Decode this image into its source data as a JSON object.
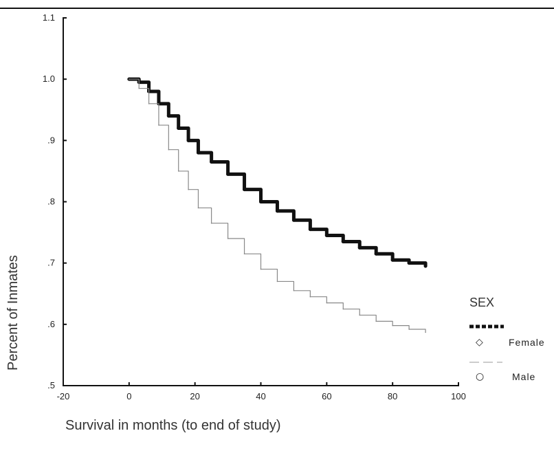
{
  "chart_data": {
    "type": "line",
    "title": "",
    "xlabel": "Survival in months (to end of study)",
    "ylabel": "Percent of Inmates",
    "xlim": [
      -20,
      100
    ],
    "ylim": [
      0.5,
      1.1
    ],
    "x_ticks": [
      "-20",
      "0",
      "20",
      "40",
      "60",
      "80",
      "100"
    ],
    "y_ticks": [
      "1.1",
      "1.0",
      ".9",
      ".8",
      ".7",
      ".6",
      ".5"
    ],
    "legend": {
      "title": "SEX",
      "position": "right"
    },
    "series": [
      {
        "name": "Female",
        "color": "#111111",
        "style": "thick",
        "x": [
          0,
          3,
          6,
          9,
          12,
          15,
          18,
          21,
          25,
          30,
          35,
          40,
          45,
          50,
          55,
          60,
          65,
          70,
          75,
          80,
          85,
          90
        ],
        "y": [
          1.0,
          0.995,
          0.98,
          0.96,
          0.94,
          0.92,
          0.9,
          0.88,
          0.865,
          0.845,
          0.82,
          0.8,
          0.785,
          0.77,
          0.755,
          0.745,
          0.735,
          0.725,
          0.715,
          0.705,
          0.7,
          0.695
        ]
      },
      {
        "name": "Male",
        "color": "#888888",
        "style": "thin",
        "x": [
          0,
          3,
          6,
          9,
          12,
          15,
          18,
          21,
          25,
          30,
          35,
          40,
          45,
          50,
          55,
          60,
          65,
          70,
          75,
          80,
          85,
          90
        ],
        "y": [
          1.0,
          0.985,
          0.96,
          0.925,
          0.885,
          0.85,
          0.82,
          0.79,
          0.765,
          0.74,
          0.715,
          0.69,
          0.67,
          0.655,
          0.645,
          0.635,
          0.625,
          0.615,
          0.605,
          0.598,
          0.592,
          0.587
        ]
      }
    ]
  }
}
